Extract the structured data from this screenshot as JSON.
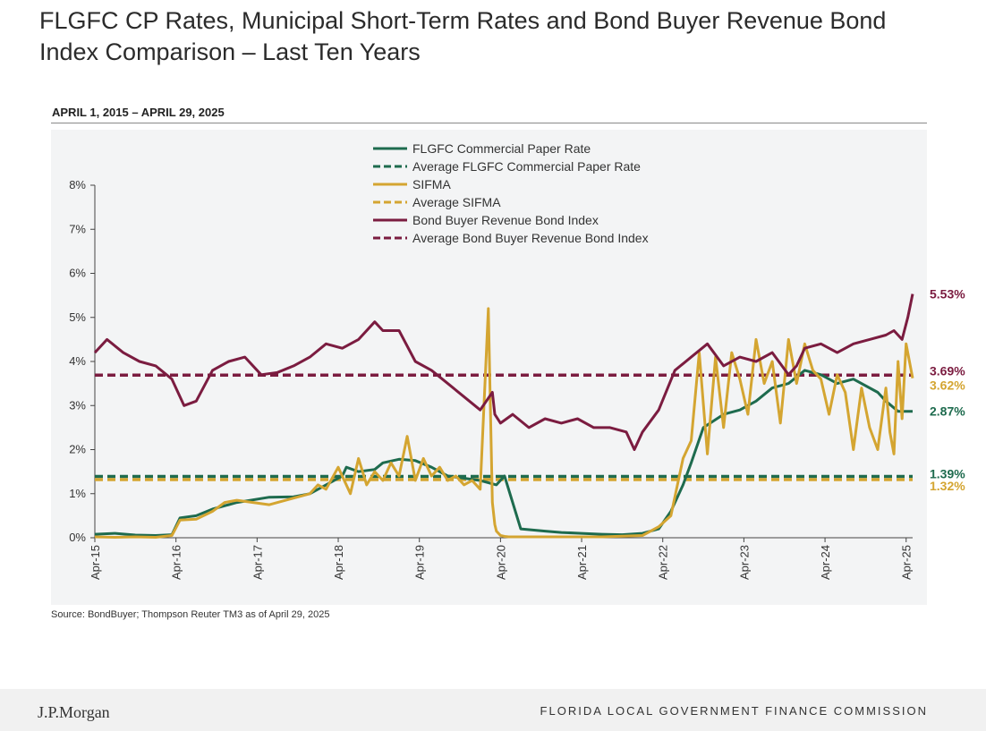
{
  "page": {
    "title": "FLGFC CP Rates, Municipal Short-Term Rates and Bond Buyer Revenue Bond Index Comparison – Last Ten Years",
    "subtitle": "APRIL 1, 2015 – APRIL 29, 2025",
    "source": "Source: BondBuyer;  Thompson Reuter TM3 as of April 29, 2025",
    "footer_logo": "J.P.Morgan",
    "footer_org": "FLORIDA LOCAL GOVERNMENT FINANCE COMMISSION"
  },
  "chart_data": {
    "type": "line",
    "title": "",
    "xlabel": "",
    "ylabel": "",
    "x_start": 2015.25,
    "x_end": 2025.33,
    "xlim": [
      2015.25,
      2025.33
    ],
    "ylim": [
      0,
      8
    ],
    "y_ticks": [
      0,
      1,
      2,
      3,
      4,
      5,
      6,
      7,
      8
    ],
    "y_tick_labels": [
      "0%",
      "1%",
      "2%",
      "3%",
      "4%",
      "5%",
      "6%",
      "7%",
      "8%"
    ],
    "x_ticks": [
      2015.25,
      2016.25,
      2017.25,
      2018.25,
      2019.25,
      2020.25,
      2021.25,
      2022.25,
      2023.25,
      2024.25,
      2025.25
    ],
    "x_tick_labels": [
      "Apr-15",
      "Apr-16",
      "Apr-17",
      "Apr-18",
      "Apr-19",
      "Apr-20",
      "Apr-21",
      "Apr-22",
      "Apr-23",
      "Apr-24",
      "Apr-25"
    ],
    "grid": false,
    "legend_position": "top-center",
    "series": [
      {
        "name": "FLGFC Commercial Paper Rate",
        "color": "#1e6b4e",
        "style": "solid",
        "x": [
          2015.25,
          2015.5,
          2015.75,
          2016.0,
          2016.2,
          2016.3,
          2016.5,
          2016.7,
          2017.0,
          2017.4,
          2017.7,
          2017.9,
          2018.1,
          2018.3,
          2018.35,
          2018.5,
          2018.7,
          2018.8,
          2019.0,
          2019.2,
          2019.4,
          2019.6,
          2019.8,
          2020.0,
          2020.2,
          2020.3,
          2020.5,
          2020.8,
          2021.0,
          2021.25,
          2021.5,
          2021.75,
          2022.0,
          2022.2,
          2022.35,
          2022.5,
          2022.6,
          2022.75,
          2023.0,
          2023.2,
          2023.4,
          2023.6,
          2023.8,
          2024.0,
          2024.2,
          2024.4,
          2024.6,
          2024.9,
          2025.0,
          2025.15,
          2025.33
        ],
        "values": [
          0.08,
          0.1,
          0.06,
          0.05,
          0.07,
          0.45,
          0.5,
          0.65,
          0.8,
          0.92,
          0.93,
          1.0,
          1.2,
          1.4,
          1.6,
          1.5,
          1.55,
          1.7,
          1.78,
          1.75,
          1.6,
          1.4,
          1.35,
          1.3,
          1.2,
          1.4,
          0.2,
          0.15,
          0.12,
          0.1,
          0.08,
          0.07,
          0.1,
          0.2,
          0.6,
          1.2,
          1.7,
          2.5,
          2.8,
          2.9,
          3.1,
          3.4,
          3.5,
          3.8,
          3.7,
          3.5,
          3.6,
          3.3,
          3.1,
          2.87,
          2.87
        ]
      },
      {
        "name": "Average FLGFC Commercial Paper Rate",
        "color": "#1e6b4e",
        "style": "dashed",
        "value": 1.39,
        "label": "1.39%"
      },
      {
        "name": "SIFMA",
        "color": "#d4a531",
        "style": "solid",
        "x": [
          2015.25,
          2015.5,
          2015.75,
          2016.0,
          2016.2,
          2016.3,
          2016.5,
          2016.7,
          2016.85,
          2017.0,
          2017.4,
          2017.7,
          2017.9,
          2018.0,
          2018.1,
          2018.25,
          2018.4,
          2018.5,
          2018.6,
          2018.7,
          2018.8,
          2018.9,
          2019.0,
          2019.1,
          2019.2,
          2019.3,
          2019.4,
          2019.5,
          2019.6,
          2019.7,
          2019.8,
          2019.9,
          2020.0,
          2020.1,
          2020.15,
          2020.18,
          2020.2,
          2020.25,
          2020.3,
          2020.35,
          2020.5,
          2021.0,
          2021.5,
          2022.0,
          2022.2,
          2022.35,
          2022.5,
          2022.6,
          2022.7,
          2022.8,
          2022.9,
          2023.0,
          2023.1,
          2023.2,
          2023.3,
          2023.4,
          2023.5,
          2023.6,
          2023.7,
          2023.8,
          2023.9,
          2024.0,
          2024.1,
          2024.2,
          2024.3,
          2024.4,
          2024.5,
          2024.6,
          2024.7,
          2024.8,
          2024.9,
          2025.0,
          2025.05,
          2025.1,
          2025.15,
          2025.2,
          2025.25,
          2025.33
        ],
        "values": [
          0.02,
          0.01,
          0.02,
          0.01,
          0.05,
          0.4,
          0.42,
          0.6,
          0.8,
          0.85,
          0.75,
          0.9,
          1.0,
          1.2,
          1.1,
          1.6,
          1.0,
          1.8,
          1.2,
          1.5,
          1.3,
          1.7,
          1.4,
          2.3,
          1.3,
          1.8,
          1.4,
          1.6,
          1.3,
          1.4,
          1.2,
          1.3,
          1.1,
          5.2,
          0.8,
          0.3,
          0.15,
          0.05,
          0.03,
          0.02,
          0.02,
          0.02,
          0.02,
          0.05,
          0.25,
          0.5,
          1.8,
          2.2,
          4.2,
          1.9,
          4.1,
          2.5,
          4.2,
          3.6,
          2.8,
          4.5,
          3.5,
          4.0,
          2.6,
          4.5,
          3.5,
          4.4,
          3.8,
          3.6,
          2.8,
          3.7,
          3.3,
          2.0,
          3.4,
          2.5,
          2.0,
          3.4,
          2.4,
          1.9,
          4.0,
          2.7,
          4.4,
          3.62
        ]
      },
      {
        "name": "Average SIFMA",
        "color": "#d4a531",
        "style": "dashed",
        "value": 1.32,
        "label": "1.32%"
      },
      {
        "name": "Bond Buyer Revenue Bond Index",
        "color": "#7b1c40",
        "style": "solid",
        "x": [
          2015.25,
          2015.4,
          2015.6,
          2015.8,
          2016.0,
          2016.2,
          2016.35,
          2016.5,
          2016.7,
          2016.9,
          2017.1,
          2017.3,
          2017.5,
          2017.7,
          2017.9,
          2018.1,
          2018.3,
          2018.5,
          2018.7,
          2018.8,
          2019.0,
          2019.2,
          2019.4,
          2019.6,
          2019.8,
          2020.0,
          2020.15,
          2020.18,
          2020.25,
          2020.4,
          2020.6,
          2020.8,
          2021.0,
          2021.2,
          2021.4,
          2021.6,
          2021.8,
          2021.9,
          2022.0,
          2022.2,
          2022.4,
          2022.6,
          2022.8,
          2023.0,
          2023.2,
          2023.4,
          2023.6,
          2023.8,
          2023.9,
          2024.0,
          2024.2,
          2024.4,
          2024.6,
          2024.8,
          2025.0,
          2025.1,
          2025.2,
          2025.27,
          2025.33
        ],
        "values": [
          4.2,
          4.5,
          4.2,
          4.0,
          3.9,
          3.6,
          3.0,
          3.1,
          3.8,
          4.0,
          4.1,
          3.7,
          3.75,
          3.9,
          4.1,
          4.4,
          4.3,
          4.5,
          4.9,
          4.7,
          4.7,
          4.0,
          3.8,
          3.5,
          3.2,
          2.9,
          3.3,
          2.8,
          2.6,
          2.8,
          2.5,
          2.7,
          2.6,
          2.7,
          2.5,
          2.5,
          2.4,
          2.0,
          2.4,
          2.9,
          3.8,
          4.1,
          4.4,
          3.9,
          4.1,
          4.0,
          4.2,
          3.7,
          3.9,
          4.3,
          4.4,
          4.2,
          4.4,
          4.5,
          4.6,
          4.7,
          4.5,
          5.0,
          5.53
        ]
      },
      {
        "name": "Average Bond Buyer Revenue Bond Index",
        "color": "#7b1c40",
        "style": "dashed",
        "value": 3.69,
        "label": "3.69%"
      }
    ],
    "end_labels": [
      {
        "text": "5.53%",
        "value": 5.53,
        "color": "#7b1c40"
      },
      {
        "text": "3.69%",
        "value": 3.69,
        "color": "#7b1c40"
      },
      {
        "text": "3.62%",
        "value": 3.62,
        "color": "#d4a531"
      },
      {
        "text": "2.87%",
        "value": 2.87,
        "color": "#1e6b4e"
      },
      {
        "text": "1.39%",
        "value": 1.39,
        "color": "#1e6b4e"
      },
      {
        "text": "1.32%",
        "value": 1.32,
        "color": "#d4a531"
      }
    ]
  }
}
